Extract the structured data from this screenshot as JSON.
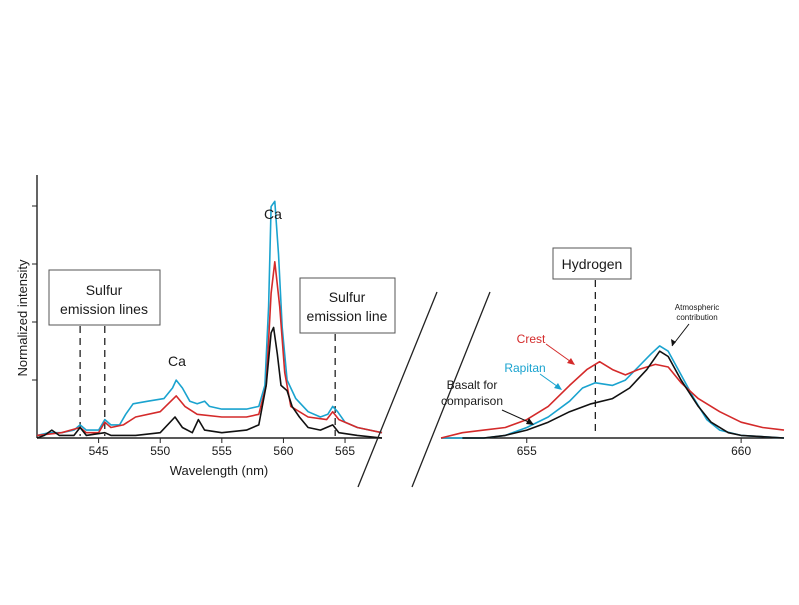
{
  "chart_data": [
    {
      "type": "line",
      "ylabel": "Normalized intensity",
      "xlabel": "Wavelength (nm)",
      "xlim": [
        540,
        568
      ],
      "ylim": [
        0,
        1
      ],
      "x_ticks": [
        545,
        550,
        555,
        560,
        565
      ],
      "y_ticks_unlabeled": 4,
      "colors": {
        "Crest": "#d42a2a",
        "Rapitan": "#1aa3cf",
        "Basalt": "#111111"
      },
      "series": [
        {
          "key": "Rapitan",
          "points": [
            [
              540,
              0.01
            ],
            [
              541,
              0.02
            ],
            [
              542,
              0.02
            ],
            [
              543,
              0.03
            ],
            [
              543.5,
              0.05
            ],
            [
              544,
              0.03
            ],
            [
              545,
              0.03
            ],
            [
              545.5,
              0.07
            ],
            [
              546,
              0.05
            ],
            [
              546.7,
              0.05
            ],
            [
              547.2,
              0.09
            ],
            [
              547.8,
              0.13
            ],
            [
              549,
              0.14
            ],
            [
              550.3,
              0.15
            ],
            [
              551,
              0.19
            ],
            [
              551.3,
              0.22
            ],
            [
              551.8,
              0.19
            ],
            [
              552.4,
              0.14
            ],
            [
              553,
              0.13
            ],
            [
              553.6,
              0.14
            ],
            [
              554,
              0.12
            ],
            [
              555,
              0.11
            ],
            [
              556,
              0.11
            ],
            [
              557,
              0.11
            ],
            [
              558,
              0.12
            ],
            [
              558.5,
              0.2
            ],
            [
              558.8,
              0.5
            ],
            [
              559.0,
              0.88
            ],
            [
              559.3,
              0.9
            ],
            [
              559.6,
              0.7
            ],
            [
              559.9,
              0.42
            ],
            [
              560.3,
              0.22
            ],
            [
              561,
              0.15
            ],
            [
              562,
              0.1
            ],
            [
              563,
              0.08
            ],
            [
              563.6,
              0.09
            ],
            [
              564,
              0.12
            ],
            [
              564.4,
              0.1
            ],
            [
              565,
              0.06
            ],
            [
              566,
              0.04
            ],
            [
              567,
              0.03
            ],
            [
              568,
              0.02
            ]
          ]
        },
        {
          "key": "Crest",
          "points": [
            [
              540,
              0.01
            ],
            [
              542,
              0.02
            ],
            [
              543.5,
              0.04
            ],
            [
              544,
              0.02
            ],
            [
              545,
              0.02
            ],
            [
              545.5,
              0.06
            ],
            [
              546,
              0.04
            ],
            [
              547,
              0.05
            ],
            [
              548,
              0.08
            ],
            [
              550,
              0.1
            ],
            [
              551.3,
              0.16
            ],
            [
              552,
              0.12
            ],
            [
              553,
              0.09
            ],
            [
              555,
              0.08
            ],
            [
              557,
              0.08
            ],
            [
              558,
              0.09
            ],
            [
              558.6,
              0.2
            ],
            [
              559.0,
              0.55
            ],
            [
              559.3,
              0.67
            ],
            [
              559.7,
              0.5
            ],
            [
              560.1,
              0.25
            ],
            [
              560.6,
              0.12
            ],
            [
              562,
              0.08
            ],
            [
              563.5,
              0.07
            ],
            [
              564,
              0.1
            ],
            [
              564.5,
              0.07
            ],
            [
              566,
              0.04
            ],
            [
              568,
              0.02
            ]
          ]
        },
        {
          "key": "Basalt",
          "points": [
            [
              540,
              0.0
            ],
            [
              540.6,
              0.01
            ],
            [
              541.2,
              0.03
            ],
            [
              541.8,
              0.01
            ],
            [
              543,
              0.01
            ],
            [
              543.5,
              0.04
            ],
            [
              544,
              0.01
            ],
            [
              545.5,
              0.02
            ],
            [
              546,
              0.01
            ],
            [
              548,
              0.01
            ],
            [
              550,
              0.02
            ],
            [
              551.2,
              0.08
            ],
            [
              551.8,
              0.04
            ],
            [
              552.6,
              0.02
            ],
            [
              553.1,
              0.07
            ],
            [
              553.6,
              0.03
            ],
            [
              555,
              0.02
            ],
            [
              557,
              0.03
            ],
            [
              558,
              0.05
            ],
            [
              558.6,
              0.2
            ],
            [
              559.0,
              0.4
            ],
            [
              559.2,
              0.42
            ],
            [
              559.5,
              0.32
            ],
            [
              559.8,
              0.2
            ],
            [
              560.3,
              0.18
            ],
            [
              560.7,
              0.12
            ],
            [
              561.3,
              0.08
            ],
            [
              562,
              0.04
            ],
            [
              563,
              0.03
            ],
            [
              564,
              0.05
            ],
            [
              564.5,
              0.02
            ],
            [
              566,
              0.01
            ],
            [
              568,
              0.0
            ]
          ]
        }
      ],
      "annotations": {
        "sulfur_lines_box": [
          "Sulfur",
          "emission lines"
        ],
        "sulfur_line_box": [
          "Sulfur",
          "emission line"
        ],
        "ca_small": "Ca",
        "ca_big": "Ca"
      },
      "dashed_lines_x": [
        543.5,
        545.5,
        564.2
      ]
    },
    {
      "type": "line",
      "xlim": [
        653,
        661
      ],
      "ylim": [
        0,
        1
      ],
      "x_ticks": [
        655,
        660
      ],
      "series": [
        {
          "key": "Rapitan",
          "points": [
            [
              653,
              0.0
            ],
            [
              654,
              0.0
            ],
            [
              654.5,
              0.01
            ],
            [
              655,
              0.04
            ],
            [
              655.5,
              0.08
            ],
            [
              656,
              0.14
            ],
            [
              656.3,
              0.19
            ],
            [
              656.6,
              0.21
            ],
            [
              657,
              0.2
            ],
            [
              657.3,
              0.22
            ],
            [
              657.6,
              0.27
            ],
            [
              657.9,
              0.32
            ],
            [
              658.1,
              0.35
            ],
            [
              658.3,
              0.33
            ],
            [
              658.6,
              0.24
            ],
            [
              658.9,
              0.15
            ],
            [
              659.2,
              0.07
            ],
            [
              659.5,
              0.03
            ],
            [
              660,
              0.01
            ],
            [
              660.5,
              0.005
            ],
            [
              661,
              0.0
            ]
          ]
        },
        {
          "key": "Crest",
          "points": [
            [
              653,
              0.0
            ],
            [
              653.5,
              0.02
            ],
            [
              654,
              0.03
            ],
            [
              654.5,
              0.04
            ],
            [
              655,
              0.07
            ],
            [
              655.5,
              0.12
            ],
            [
              656,
              0.2
            ],
            [
              656.4,
              0.26
            ],
            [
              656.7,
              0.29
            ],
            [
              657,
              0.26
            ],
            [
              657.3,
              0.24
            ],
            [
              657.6,
              0.26
            ],
            [
              658.0,
              0.28
            ],
            [
              658.3,
              0.27
            ],
            [
              658.6,
              0.21
            ],
            [
              659,
              0.15
            ],
            [
              659.5,
              0.1
            ],
            [
              660,
              0.06
            ],
            [
              660.5,
              0.04
            ],
            [
              661,
              0.03
            ]
          ]
        },
        {
          "key": "Basalt",
          "points": [
            [
              653.5,
              0.0
            ],
            [
              654,
              0.0
            ],
            [
              654.5,
              0.01
            ],
            [
              655,
              0.03
            ],
            [
              655.5,
              0.06
            ],
            [
              656,
              0.1
            ],
            [
              656.5,
              0.13
            ],
            [
              657,
              0.15
            ],
            [
              657.4,
              0.19
            ],
            [
              657.8,
              0.26
            ],
            [
              658.1,
              0.33
            ],
            [
              658.3,
              0.31
            ],
            [
              658.6,
              0.22
            ],
            [
              659,
              0.12
            ],
            [
              659.3,
              0.06
            ],
            [
              659.7,
              0.02
            ],
            [
              660,
              0.01
            ],
            [
              661,
              0.0
            ]
          ]
        }
      ],
      "annotations": {
        "hydrogen_box": "Hydrogen",
        "atmospheric": [
          "Atmospheric",
          "contribution"
        ],
        "crest": "Crest",
        "rapitan": "Rapitan",
        "basalt": [
          "Basalt for",
          "comparison"
        ]
      },
      "dashed_lines_x": [
        656.6
      ]
    }
  ]
}
